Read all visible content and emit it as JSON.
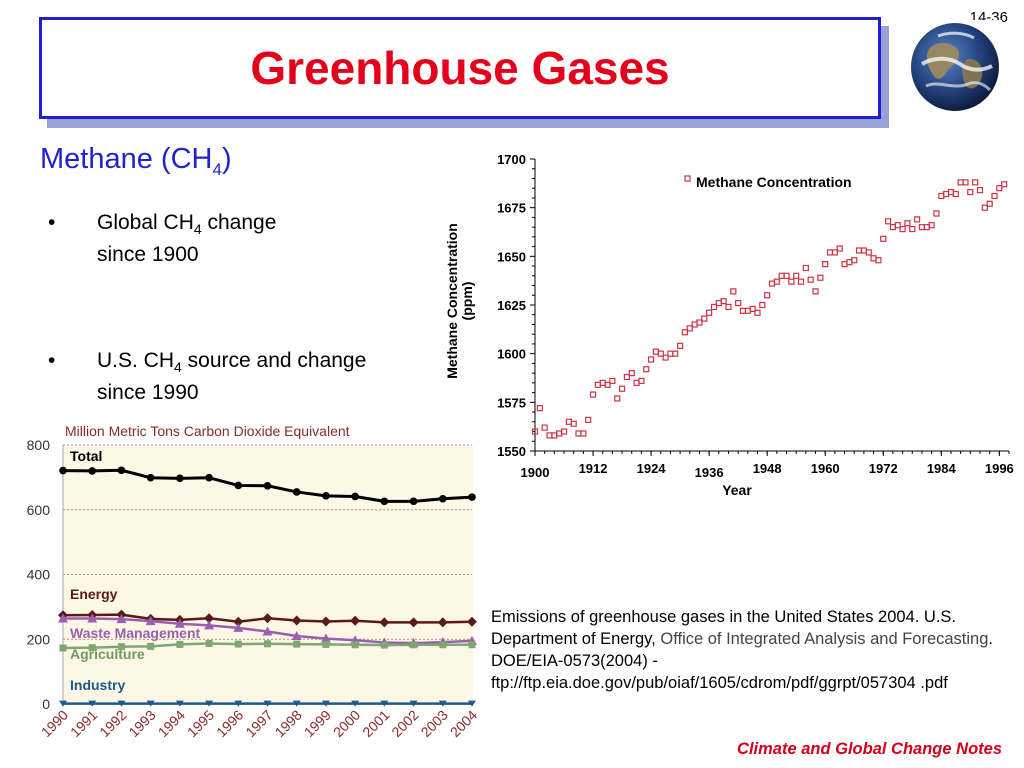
{
  "slide": {
    "title": "Greenhouse Gases",
    "page_number": "14-36",
    "heading": "Methane (CH",
    "heading_sub": "4",
    "heading_close": ")",
    "bullets": [
      {
        "marker": "•",
        "line1_pre": "Global CH",
        "line1_sub": "4",
        "line1_post": " change",
        "line2": "since 1900"
      },
      {
        "marker": "•",
        "line1_pre": "U.S. CH",
        "line1_sub": "4",
        "line1_post": " source and change",
        "line2": "since 1990"
      }
    ],
    "citation": {
      "part1": "Emissions of greenhouse gases in the United States 2004. U.S. Department of Energy, ",
      "office": "Office of Integrated Analysis and Forecasting",
      "part2": ". DOE/EIA-0573(2004) - ftp://ftp.eia.doe.gov/pub/oiaf/1605/cdrom/pdf/ggrpt/057304 .pdf"
    },
    "footer": "Climate and Global Change Notes",
    "earth_icon": "earth-globe-icon"
  },
  "chart_data": [
    {
      "type": "scatter",
      "title": "",
      "xlabel": "Year",
      "ylabel": "Methane Concentration (ppm)",
      "ylabel_line1": "Methane Concentration",
      "ylabel_line2": "(ppm)",
      "legend": "Methane Concentration",
      "legend_position": "top-right",
      "xlim": [
        1900,
        1998
      ],
      "ylim": [
        1550,
        1700
      ],
      "xticks": [
        1900,
        1912,
        1924,
        1936,
        1948,
        1960,
        1972,
        1984,
        1996
      ],
      "yticks": [
        1550,
        1575,
        1600,
        1625,
        1650,
        1675,
        1700
      ],
      "marker_color": "#cc3344",
      "x": [
        1900,
        1901,
        1902,
        1903,
        1904,
        1905,
        1906,
        1907,
        1908,
        1909,
        1910,
        1911,
        1912,
        1913,
        1914,
        1915,
        1916,
        1917,
        1918,
        1919,
        1920,
        1921,
        1922,
        1923,
        1924,
        1925,
        1926,
        1927,
        1928,
        1929,
        1930,
        1931,
        1932,
        1933,
        1934,
        1935,
        1936,
        1937,
        1938,
        1939,
        1940,
        1941,
        1942,
        1943,
        1944,
        1945,
        1946,
        1947,
        1948,
        1949,
        1950,
        1951,
        1952,
        1953,
        1954,
        1955,
        1956,
        1957,
        1958,
        1959,
        1960,
        1961,
        1962,
        1963,
        1964,
        1965,
        1966,
        1967,
        1968,
        1969,
        1970,
        1971,
        1972,
        1973,
        1974,
        1975,
        1976,
        1977,
        1978,
        1979,
        1980,
        1981,
        1982,
        1983,
        1984,
        1985,
        1986,
        1987,
        1988,
        1989,
        1990,
        1991,
        1992,
        1993,
        1994,
        1995,
        1996,
        1997
      ],
      "y": [
        1560,
        1572,
        1562,
        1558,
        1558,
        1559,
        1560,
        1565,
        1564,
        1559,
        1559,
        1566,
        1579,
        1584,
        1585,
        1584,
        1586,
        1577,
        1582,
        1588,
        1590,
        1585,
        1586,
        1592,
        1597,
        1601,
        1600,
        1598,
        1600,
        1600,
        1604,
        1611,
        1613,
        1615,
        1616,
        1618,
        1621,
        1624,
        1626,
        1627,
        1624,
        1632,
        1626,
        1622,
        1622,
        1623,
        1621,
        1625,
        1630,
        1636,
        1637,
        1640,
        1640,
        1637,
        1640,
        1637,
        1644,
        1638,
        1632,
        1639,
        1646,
        1652,
        1652,
        1654,
        1646,
        1647,
        1648,
        1653,
        1653,
        1652,
        1649,
        1648,
        1659,
        1668,
        1665,
        1666,
        1664,
        1667,
        1664,
        1669,
        1665,
        1665,
        1666,
        1672,
        1681,
        1682,
        1683,
        1682,
        1688,
        1688,
        1683,
        1688,
        1684,
        1675,
        1677,
        1681,
        1685,
        1687
      ]
    },
    {
      "type": "line",
      "title": "Million Metric Tons Carbon Dioxide Equivalent",
      "xlabel": "",
      "ylabel": "",
      "ylim": [
        0,
        800
      ],
      "yticks": [
        0,
        200,
        400,
        600,
        800
      ],
      "grid": true,
      "categories": [
        "1990",
        "1991",
        "1992",
        "1993",
        "1994",
        "1995",
        "1996",
        "1997",
        "1998",
        "1999",
        "2000",
        "2001",
        "2002",
        "2003",
        "2004"
      ],
      "series": [
        {
          "name": "Total",
          "color": "#000000",
          "label_color": "#000000",
          "marker": "circle",
          "values": [
            721,
            720,
            722,
            699,
            697,
            699,
            675,
            674,
            655,
            643,
            641,
            626,
            626,
            634,
            639
          ]
        },
        {
          "name": "Energy",
          "color": "#5a1a1a",
          "label_color": "#5a1a1a",
          "marker": "diamond",
          "values": [
            274,
            275,
            276,
            263,
            260,
            265,
            254,
            265,
            258,
            255,
            257,
            252,
            252,
            252,
            254
          ]
        },
        {
          "name": "Waste Management",
          "color": "#9b5fb0",
          "label_color": "#9b5fb0",
          "marker": "triangle-up",
          "values": [
            264,
            264,
            262,
            256,
            248,
            243,
            235,
            224,
            210,
            202,
            197,
            190,
            188,
            191,
            195
          ]
        },
        {
          "name": "Agriculture",
          "color": "#7fa870",
          "label_color": "#6f9a5e",
          "marker": "square",
          "values": [
            173,
            174,
            177,
            178,
            184,
            187,
            185,
            186,
            185,
            184,
            183,
            182,
            183,
            183,
            183
          ]
        },
        {
          "name": "Industry",
          "color": "#1b5a8a",
          "label_color": "#1b5a8a",
          "marker": "triangle-down",
          "values": [
            1,
            1,
            1,
            1,
            1,
            1,
            1,
            1,
            1,
            1,
            1,
            1,
            1,
            1,
            1
          ]
        }
      ]
    }
  ]
}
